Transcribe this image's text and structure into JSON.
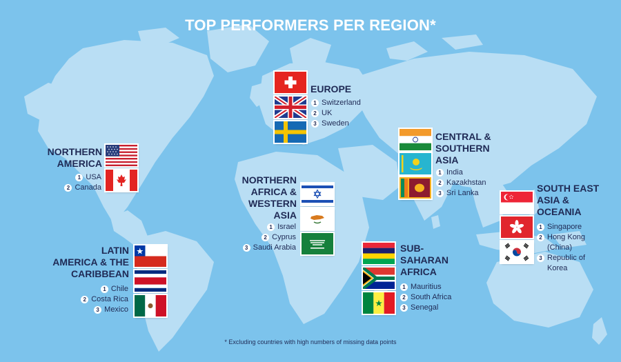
{
  "title": "TOP PERFORMERS PER REGION*",
  "footnote": "* Excluding countries with high numbers of missing data points",
  "colors": {
    "background": "#7cc3ec",
    "land": "#b9def4",
    "text": "#1f2a55"
  },
  "regions": {
    "europe": {
      "name_lines": [
        "EUROPE"
      ],
      "countries": [
        {
          "rank": "1",
          "name": "Switzerland",
          "flag": "switzerland-flag"
        },
        {
          "rank": "2",
          "name": "UK",
          "flag": "uk-flag"
        },
        {
          "rank": "3",
          "name": "Sweden",
          "flag": "sweden-flag"
        }
      ]
    },
    "northern_america": {
      "name_lines": [
        "NORTHERN",
        "AMERICA"
      ],
      "countries": [
        {
          "rank": "1",
          "name": "USA",
          "flag": "usa-flag"
        },
        {
          "rank": "2",
          "name": "Canada",
          "flag": "canada-flag"
        }
      ]
    },
    "central_southern_asia": {
      "name_lines": [
        "CENTRAL &",
        "SOUTHERN",
        "ASIA"
      ],
      "countries": [
        {
          "rank": "1",
          "name": "India",
          "flag": "india-flag"
        },
        {
          "rank": "2",
          "name": "Kazakhstan",
          "flag": "kazakhstan-flag"
        },
        {
          "rank": "3",
          "name": "Sri Lanka",
          "flag": "sri-lanka-flag"
        }
      ]
    },
    "northern_africa_western_asia": {
      "name_lines": [
        "NORTHERN",
        "AFRICA &",
        "WESTERN",
        "ASIA"
      ],
      "countries": [
        {
          "rank": "1",
          "name": "Israel",
          "flag": "israel-flag"
        },
        {
          "rank": "2",
          "name": "Cyprus",
          "flag": "cyprus-flag"
        },
        {
          "rank": "3",
          "name": "Saudi Arabia",
          "flag": "saudi-arabia-flag"
        }
      ]
    },
    "south_east_asia_oceania": {
      "name_lines": [
        "SOUTH EAST",
        "ASIA &",
        "OCEANIA"
      ],
      "countries": [
        {
          "rank": "1",
          "name_lines": [
            "Singapore"
          ],
          "flag": "singapore-flag"
        },
        {
          "rank": "2",
          "name_lines": [
            "Hong Kong",
            "(China)"
          ],
          "flag": "hong-kong-flag"
        },
        {
          "rank": "3",
          "name_lines": [
            "Republic of",
            "Korea"
          ],
          "flag": "korea-flag"
        }
      ]
    },
    "latin_america_caribbean": {
      "name_lines": [
        "LATIN",
        "AMERICA & THE",
        "CARIBBEAN"
      ],
      "countries": [
        {
          "rank": "1",
          "name": "Chile",
          "flag": "chile-flag"
        },
        {
          "rank": "2",
          "name": "Costa Rica",
          "flag": "costa-rica-flag"
        },
        {
          "rank": "3",
          "name": "Mexico",
          "flag": "mexico-flag"
        }
      ]
    },
    "sub_saharan_africa": {
      "name_lines": [
        "SUB-",
        "SAHARAN",
        "AFRICA"
      ],
      "countries": [
        {
          "rank": "1",
          "name": "Mauritius",
          "flag": "mauritius-flag"
        },
        {
          "rank": "2",
          "name": "South Africa",
          "flag": "south-africa-flag"
        },
        {
          "rank": "3",
          "name": "Senegal",
          "flag": "senegal-flag"
        }
      ]
    }
  }
}
